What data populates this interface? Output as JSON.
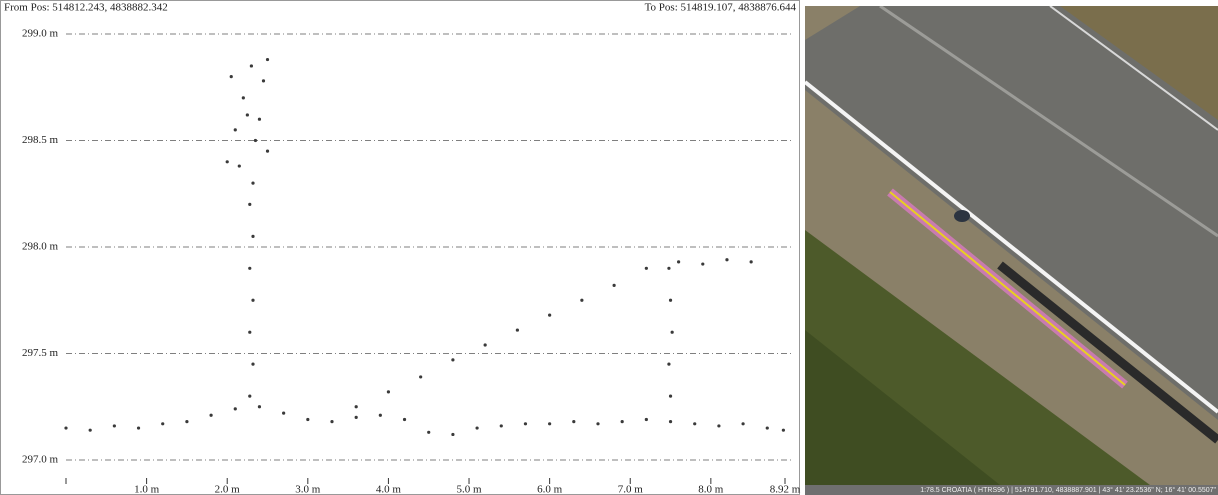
{
  "chart_data": {
    "type": "scatter",
    "from_label": "From Pos: 514812.243, 4838882.342",
    "to_label": "To Pos: 514819.107, 4838876.644",
    "color": "#3a3a3a",
    "grid": true,
    "xlim": [
      0,
      8.92
    ],
    "ylim": [
      297.0,
      299.0
    ],
    "xticks": [
      {
        "value": 1,
        "label": "1.0 m"
      },
      {
        "value": 2,
        "label": "2.0 m"
      },
      {
        "value": 3,
        "label": "3.0 m"
      },
      {
        "value": 4,
        "label": "4.0 m"
      },
      {
        "value": 5,
        "label": "5.0 m"
      },
      {
        "value": 6,
        "label": "6.0 m"
      },
      {
        "value": 7,
        "label": "7.0 m"
      },
      {
        "value": 8,
        "label": "8.0 m"
      },
      {
        "value": 8.92,
        "label": "8.92 m"
      }
    ],
    "yticks": [
      {
        "value": 299.0,
        "label": "299.0 m"
      },
      {
        "value": 298.5,
        "label": "298.5 m"
      },
      {
        "value": 298.0,
        "label": "298.0 m"
      },
      {
        "value": 297.5,
        "label": "297.5 m"
      },
      {
        "value": 297.0,
        "label": "297.0 m"
      }
    ],
    "x": [
      0.0,
      0.3,
      0.6,
      0.9,
      1.2,
      1.5,
      1.8,
      2.1,
      2.4,
      2.7,
      3.0,
      3.3,
      3.6,
      3.9,
      4.2,
      4.5,
      4.8,
      5.1,
      5.4,
      5.7,
      6.0,
      6.3,
      6.6,
      6.9,
      7.2,
      7.5,
      7.8,
      8.1,
      8.4,
      8.7,
      8.9,
      2.28,
      2.32,
      2.28,
      2.32,
      2.28,
      2.32,
      2.28,
      2.32,
      2.0,
      2.1,
      2.2,
      2.3,
      2.4,
      2.5,
      2.05,
      2.15,
      2.35,
      2.45,
      2.25,
      2.5,
      3.6,
      4.0,
      4.4,
      4.8,
      5.2,
      5.6,
      6.0,
      6.4,
      6.8,
      7.2,
      7.5,
      7.48,
      7.52,
      7.5,
      7.48,
      7.6,
      7.9,
      8.2,
      8.5
    ],
    "values": [
      297.15,
      297.14,
      297.16,
      297.15,
      297.17,
      297.18,
      297.21,
      297.24,
      297.25,
      297.22,
      297.19,
      297.18,
      297.2,
      297.21,
      297.19,
      297.13,
      297.12,
      297.15,
      297.16,
      297.17,
      297.17,
      297.18,
      297.17,
      297.18,
      297.19,
      297.18,
      297.17,
      297.16,
      297.17,
      297.15,
      297.14,
      297.3,
      297.45,
      297.6,
      297.75,
      297.9,
      298.05,
      298.2,
      298.3,
      298.4,
      298.55,
      298.7,
      298.85,
      298.6,
      298.45,
      298.8,
      298.38,
      298.5,
      298.78,
      298.62,
      298.88,
      297.25,
      297.32,
      297.39,
      297.47,
      297.54,
      297.61,
      297.68,
      297.75,
      297.82,
      297.9,
      297.3,
      297.45,
      297.6,
      297.75,
      297.9,
      297.93,
      297.92,
      297.94,
      297.93
    ]
  },
  "map": {
    "status": "1:78.5  CROATIA ( HTRS96 ) | 514791.710, 4838887.901 | 43° 41' 23.2536\" N; 16° 41' 00.5507\""
  }
}
